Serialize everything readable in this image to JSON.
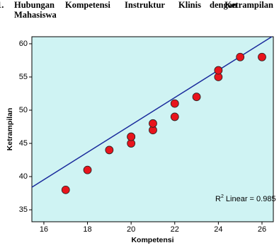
{
  "heading": {
    "number": "1.",
    "line1": [
      "Hubungan",
      "Kompetensi",
      "Instruktur",
      "Klinis",
      "dengan",
      "Ketrampilan"
    ],
    "line2": "Mahasiswa"
  },
  "chart_data": {
    "type": "scatter",
    "x_label": "Kompetensi",
    "y_label": "Ketrampilan",
    "x": [
      17,
      18,
      19,
      20,
      20,
      20,
      21,
      21,
      22,
      22,
      23,
      24,
      24,
      25,
      26
    ],
    "values": [
      38,
      41,
      44,
      45,
      46,
      46,
      47,
      48,
      49,
      51,
      52,
      55,
      56,
      58,
      58
    ],
    "color": "#e8141c",
    "background": "#cff3f3",
    "line_color": "#1a2a9c",
    "fit_line": {
      "x": [
        15.45,
        26.45
      ],
      "y": [
        38.4,
        61.06
      ]
    },
    "annotation": {
      "base": "R",
      "sup": "2",
      "text": " Linear = 0.985"
    },
    "xlim": [
      15.45,
      26.52
    ],
    "ylim": [
      33.2,
      61.06
    ],
    "xticks": [
      16,
      18,
      20,
      22,
      24,
      26
    ],
    "yticks": [
      35,
      40,
      45,
      50,
      55,
      60
    ]
  }
}
